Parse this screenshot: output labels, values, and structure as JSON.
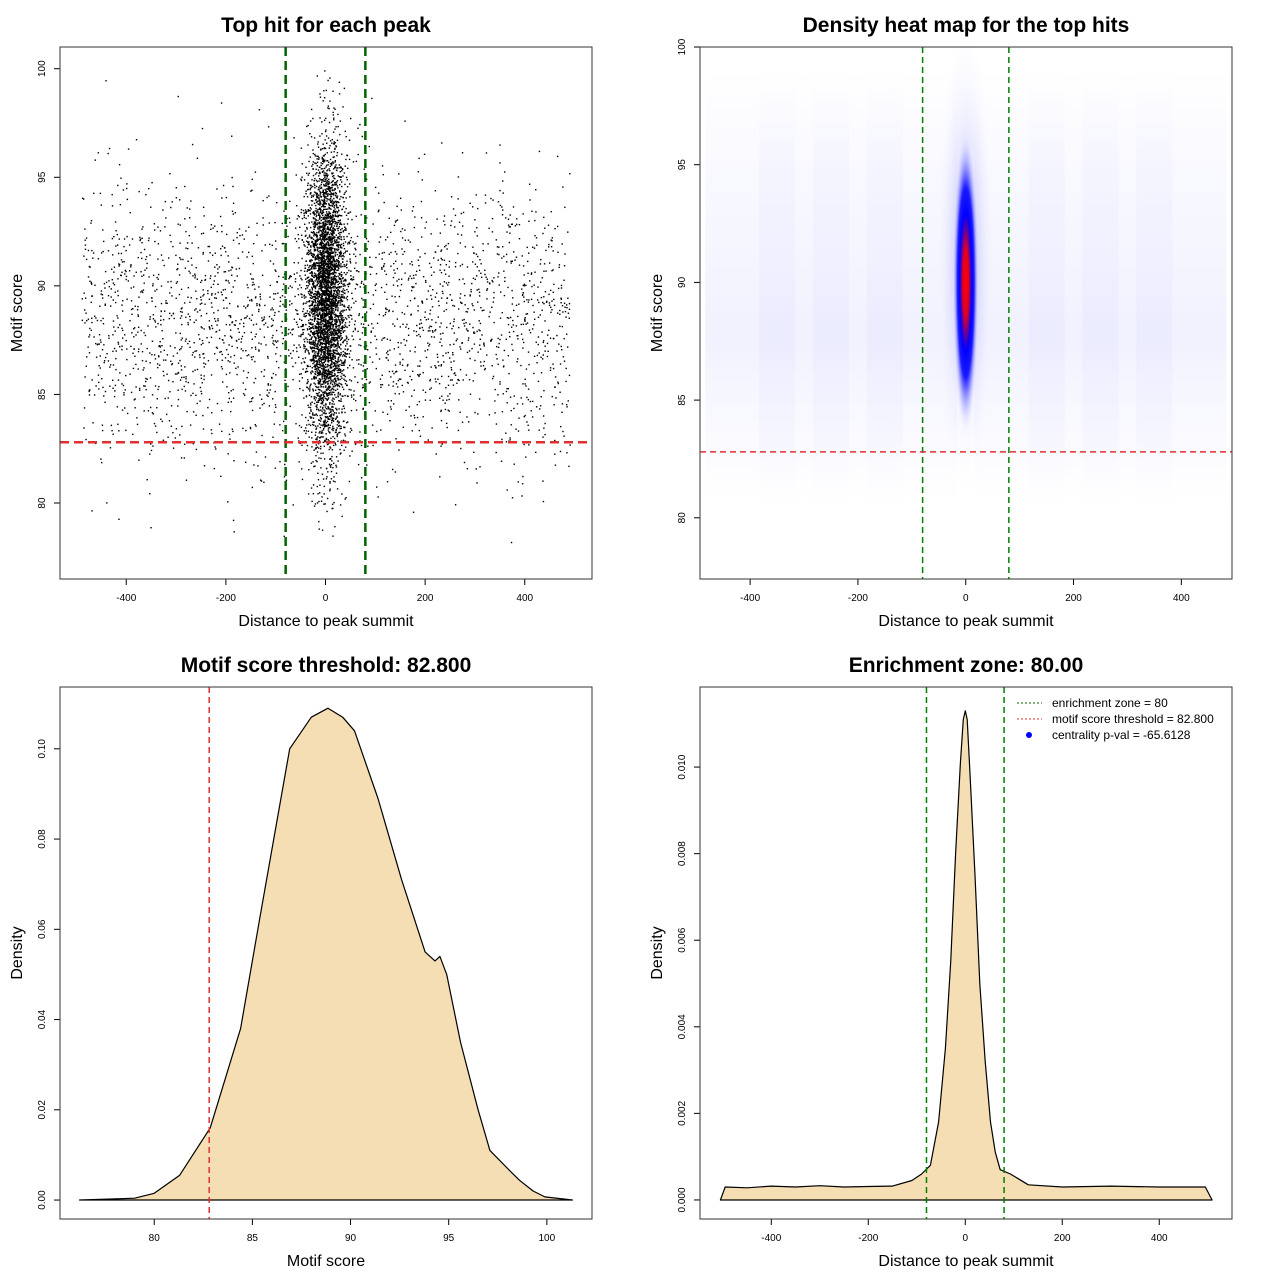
{
  "chart_data": [
    {
      "type": "scatter",
      "title": "Top hit for each peak",
      "xlabel": "Distance to peak summit",
      "ylabel": "Motif score",
      "xlim": [
        -533,
        535
      ],
      "ylim": [
        76.5,
        101
      ],
      "xticks": [
        -400,
        -200,
        0,
        200,
        400
      ],
      "yticks": [
        80,
        85,
        90,
        95,
        100
      ],
      "vlines": [
        -80,
        80
      ],
      "hline": 82.8,
      "vline_color": "#006400",
      "hline_color": "#e03030",
      "points_summary": {
        "background": {
          "n": 2600,
          "x_range": [
            -490,
            490
          ],
          "y_mean": 88.5,
          "y_sd": 3.2
        },
        "central": {
          "n": 4200,
          "x_mean": 0,
          "x_sd": 20,
          "y_mean": 89.5,
          "y_sd": 3.4
        }
      }
    },
    {
      "type": "heatmap",
      "title": "Density heat map for the top hits",
      "xlabel": "Distance to peak summit",
      "ylabel": "Motif score",
      "xlim": [
        -493,
        494
      ],
      "ylim": [
        77.4,
        100
      ],
      "xticks": [
        -400,
        -200,
        0,
        200,
        400
      ],
      "yticks": [
        80,
        85,
        90,
        95,
        100
      ],
      "vlines": [
        -80,
        80
      ],
      "hline": 82.8,
      "hotspot": {
        "x": 0,
        "y": 90,
        "x_spread": 25,
        "y_spread": 6.5
      },
      "colors": [
        "#ffffff",
        "#0000ff",
        "#ff0000"
      ]
    },
    {
      "type": "area",
      "title": "Motif score threshold: 82.800",
      "xlabel": "Motif score",
      "ylabel": "Density",
      "xlim": [
        75.2,
        102.3
      ],
      "ylim": [
        -0.0042,
        0.1137
      ],
      "xticks": [
        80,
        85,
        90,
        95,
        100
      ],
      "yticks": [
        "0.00",
        "0.02",
        "0.04",
        "0.06",
        "0.08",
        "0.10"
      ],
      "vline": 82.8,
      "fill": "#f5deb3",
      "x": [
        76.2,
        79,
        80,
        81.3,
        82.85,
        84.4,
        85.4,
        86.9,
        88,
        88.85,
        89.6,
        90.2,
        91.4,
        92.6,
        93.8,
        94.3,
        94.55,
        94.9,
        95.6,
        96.5,
        97.1,
        98,
        98.6,
        99.3,
        99.9,
        101.3
      ],
      "y": [
        0,
        0.0004,
        0.0015,
        0.0055,
        0.016,
        0.038,
        0.063,
        0.1,
        0.107,
        0.109,
        0.107,
        0.104,
        0.089,
        0.071,
        0.055,
        0.053,
        0.054,
        0.05,
        0.035,
        0.02,
        0.011,
        0.007,
        0.0044,
        0.002,
        0.0007,
        0
      ]
    },
    {
      "type": "area",
      "title": "Enrichment zone: 80.00",
      "xlabel": "Distance to peak summit",
      "ylabel": "Density",
      "xlim": [
        -547,
        550
      ],
      "ylim": [
        -0.00044,
        0.01185
      ],
      "xticks": [
        -400,
        -200,
        0,
        200,
        400
      ],
      "yticks": [
        "0.000",
        "0.002",
        "0.004",
        "0.006",
        "0.008",
        "0.010"
      ],
      "vlines": [
        -80,
        80
      ],
      "fill": "#f5deb3",
      "x": [
        -505,
        -495,
        -450,
        -400,
        -350,
        -300,
        -250,
        -200,
        -150,
        -110,
        -90,
        -72,
        -55,
        -41,
        -30,
        -20,
        -10,
        -4,
        0,
        4,
        10,
        20,
        30,
        41,
        52,
        62,
        72,
        93,
        130,
        200,
        300,
        400,
        495,
        509
      ],
      "y": [
        0,
        0.0003,
        0.00028,
        0.00032,
        0.0003,
        0.00033,
        0.0003,
        0.00031,
        0.00032,
        0.00045,
        0.0006,
        0.0008,
        0.0018,
        0.0035,
        0.0055,
        0.008,
        0.0101,
        0.0111,
        0.0113,
        0.0111,
        0.0098,
        0.0075,
        0.005,
        0.0032,
        0.0018,
        0.0011,
        0.0007,
        0.0006,
        0.00035,
        0.0003,
        0.00032,
        0.0003,
        0.0003,
        0
      ],
      "legend": {
        "position": "top-right",
        "entries": [
          {
            "label": "enrichment zone = 80",
            "color": "#006400",
            "style": "dotted"
          },
          {
            "label": "motif score threshold = 82.800",
            "color": "#e03030",
            "style": "dotted"
          },
          {
            "label": "centrality p-val = -65.6128",
            "color": "#0000ff",
            "style": "point"
          }
        ]
      }
    }
  ]
}
